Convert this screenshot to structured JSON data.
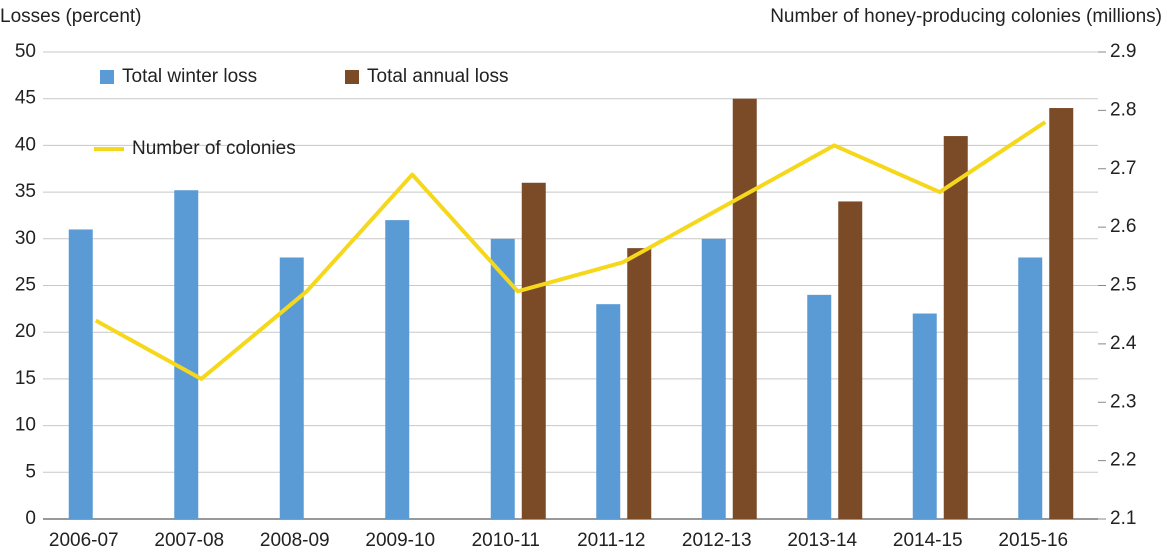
{
  "chart_data": {
    "type": "bar-line",
    "y_label": "Losses (percent)",
    "y2_label": "Number of honey-producing colonies (millions)",
    "categories": [
      "2006-07",
      "2007-08",
      "2008-09",
      "2009-10",
      "2010-11",
      "2011-12",
      "2012-13",
      "2013-14",
      "2014-15",
      "2015-16"
    ],
    "series": [
      {
        "name": "Total winter loss",
        "type": "bar",
        "color": "#5b9bd5",
        "values": [
          31,
          35.2,
          28,
          32,
          30,
          23,
          30,
          24,
          22,
          28
        ]
      },
      {
        "name": "Total annual loss",
        "type": "bar",
        "color": "#7b4a26",
        "values": [
          null,
          null,
          null,
          null,
          36,
          29,
          45,
          34,
          41,
          44
        ]
      },
      {
        "name": "Number of colonies",
        "type": "line",
        "axis": "y2",
        "color": "#f5d81c",
        "values": [
          2.44,
          2.34,
          2.49,
          2.69,
          2.49,
          2.54,
          2.64,
          2.74,
          2.66,
          2.78
        ]
      }
    ],
    "ylim": [
      0,
      50
    ],
    "yticks": [
      0,
      5,
      10,
      15,
      20,
      25,
      30,
      35,
      40,
      45,
      50
    ],
    "y2lim": [
      2.1,
      2.9
    ],
    "y2ticks": [
      2.1,
      2.2,
      2.3,
      2.4,
      2.5,
      2.6,
      2.7,
      2.8,
      2.9
    ],
    "grid": true
  }
}
